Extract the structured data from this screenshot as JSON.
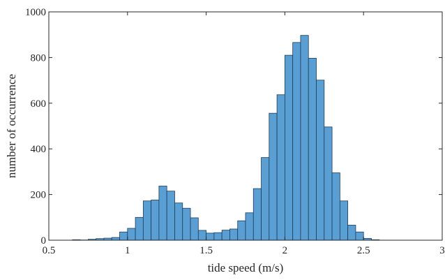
{
  "chart_data": {
    "type": "bar",
    "subtype": "histogram",
    "title": "",
    "xlabel": "tide speed (m/s)",
    "ylabel": "number of occurrence",
    "xlim": [
      0.5,
      3
    ],
    "ylim": [
      0,
      1000
    ],
    "xticks": [
      0.5,
      1,
      1.5,
      2,
      2.5,
      3
    ],
    "xtick_labels": [
      "0.5",
      "1",
      "1.5",
      "2",
      "2.5",
      "3"
    ],
    "yticks": [
      0,
      200,
      400,
      600,
      800,
      1000
    ],
    "ytick_labels": [
      "0",
      "200",
      "400",
      "600",
      "800",
      "1000"
    ],
    "bin_width": 0.05,
    "bin_starts": [
      0.65,
      0.7,
      0.75,
      0.8,
      0.85,
      0.9,
      0.95,
      1.0,
      1.05,
      1.1,
      1.15,
      1.2,
      1.25,
      1.3,
      1.35,
      1.4,
      1.45,
      1.5,
      1.55,
      1.6,
      1.65,
      1.7,
      1.75,
      1.8,
      1.85,
      1.9,
      1.95,
      2.0,
      2.05,
      2.1,
      2.15,
      2.2,
      2.25,
      2.3,
      2.35,
      2.4,
      2.45,
      2.5,
      2.55
    ],
    "values": [
      2,
      1,
      4,
      7,
      9,
      12,
      36,
      52,
      100,
      172,
      176,
      237,
      215,
      163,
      140,
      98,
      43,
      31,
      33,
      44,
      49,
      85,
      120,
      226,
      362,
      556,
      637,
      810,
      866,
      897,
      797,
      701,
      496,
      295,
      172,
      66,
      36,
      8,
      2
    ],
    "bar_color": "#5a9fd4",
    "edge_color": "#1d3c5a",
    "grid": false,
    "legend": "none"
  }
}
